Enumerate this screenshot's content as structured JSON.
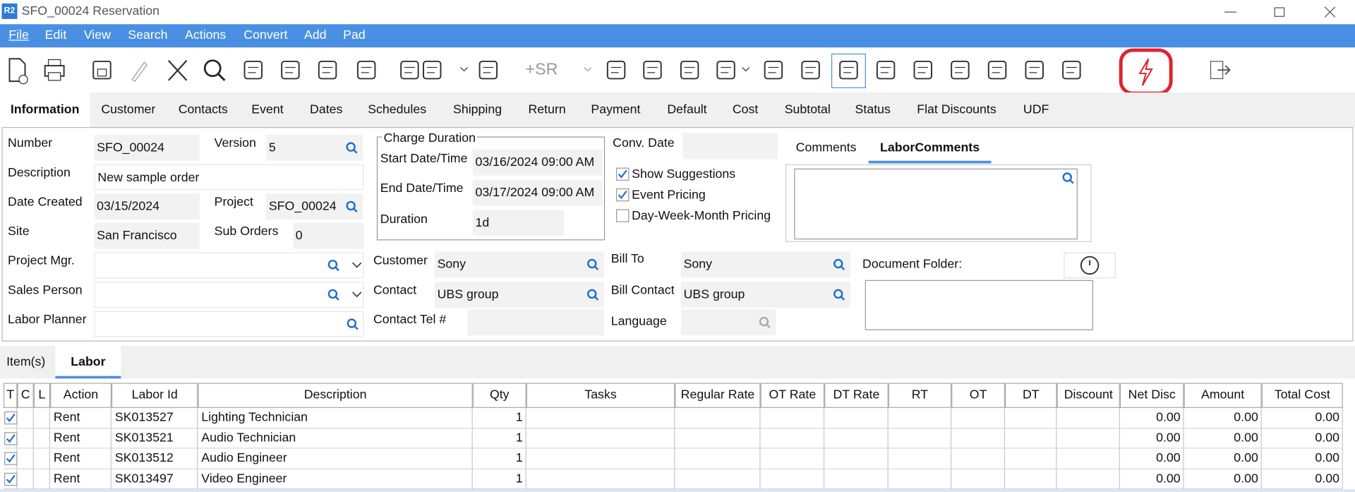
{
  "window": {
    "app_badge": "R2",
    "title": "SFO_00024 Reservation"
  },
  "menu": [
    "File",
    "Edit",
    "View",
    "Search",
    "Actions",
    "Convert",
    "Add",
    "Pad"
  ],
  "toolbar": {
    "sr_button": "+SR"
  },
  "tabs": [
    "Information",
    "Customer",
    "Contacts",
    "Event",
    "Dates",
    "Schedules",
    "Shipping",
    "Return",
    "Payment",
    "Default",
    "Cost",
    "Subtotal",
    "Status",
    "Flat Discounts",
    "UDF"
  ],
  "form": {
    "fields": [
      {
        "label": "Number",
        "value": "SFO_00024"
      },
      {
        "label": "Version",
        "value": "5"
      },
      {
        "label": "Description",
        "value": "New sample order"
      },
      {
        "label": "Date Created",
        "value": "03/15/2024"
      },
      {
        "label": "Project",
        "value": "SFO_00024"
      },
      {
        "label": "Site",
        "value": "San Francisco"
      },
      {
        "label": "Sub Orders",
        "value": "0"
      },
      {
        "label": "Project Mgr."
      },
      {
        "label": "Sales Person"
      },
      {
        "label": "Labor Planner"
      },
      {
        "label": "Start Date/Time",
        "value": "03/16/2024 09:00 AM"
      },
      {
        "label": "End Date/Time",
        "value": "03/17/2024 09:00 AM"
      },
      {
        "label": "Duration",
        "value": "1d"
      },
      {
        "label": "Customer",
        "value": "Sony"
      },
      {
        "label": "Contact",
        "value": "UBS group"
      },
      {
        "label": "Contact Tel #"
      },
      {
        "label": "Conv. Date"
      },
      {
        "label": "Bill To",
        "value": "Sony"
      },
      {
        "label": "Bill Contact",
        "value": "UBS group"
      },
      {
        "label": "Language"
      }
    ],
    "charge_group": "Charge Duration",
    "checkboxes": [
      {
        "label": "Show Suggestions",
        "checked": true
      },
      {
        "label": "Event Pricing",
        "checked": true
      },
      {
        "label": "Day-Week-Month Pricing",
        "checked": false
      }
    ],
    "comment_tabs": [
      "Comments",
      "LaborComments"
    ],
    "document_folder": "Document Folder:"
  },
  "bottom_tabs": [
    "Item(s)",
    "Labor"
  ],
  "table": {
    "columns": [
      "T",
      "C",
      "L",
      "Action",
      "Labor Id",
      "Description",
      "Qty",
      "Tasks",
      "Regular Rate",
      "OT Rate",
      "DT Rate",
      "RT",
      "OT",
      "DT",
      "Discount",
      "Net Disc",
      "Amount",
      "Total Cost"
    ],
    "rows": [
      {
        "checked": true,
        "action": "Rent",
        "labor_id": "SK013527",
        "description": "Lighting Technician",
        "qty": 1,
        "net_disc": "0.00",
        "amount": "0.00",
        "total_cost": "0.00"
      },
      {
        "checked": true,
        "action": "Rent",
        "labor_id": "SK013521",
        "description": "Audio Technician",
        "qty": 1,
        "net_disc": "0.00",
        "amount": "0.00",
        "total_cost": "0.00"
      },
      {
        "checked": true,
        "action": "Rent",
        "labor_id": "SK013512",
        "description": "Audio Engineer",
        "qty": 1,
        "net_disc": "0.00",
        "amount": "0.00",
        "total_cost": "0.00"
      },
      {
        "checked": true,
        "action": "Rent",
        "labor_id": "SK013497",
        "description": "Video Engineer",
        "qty": 1,
        "net_disc": "0.00",
        "amount": "0.00",
        "total_cost": "0.00"
      }
    ]
  }
}
